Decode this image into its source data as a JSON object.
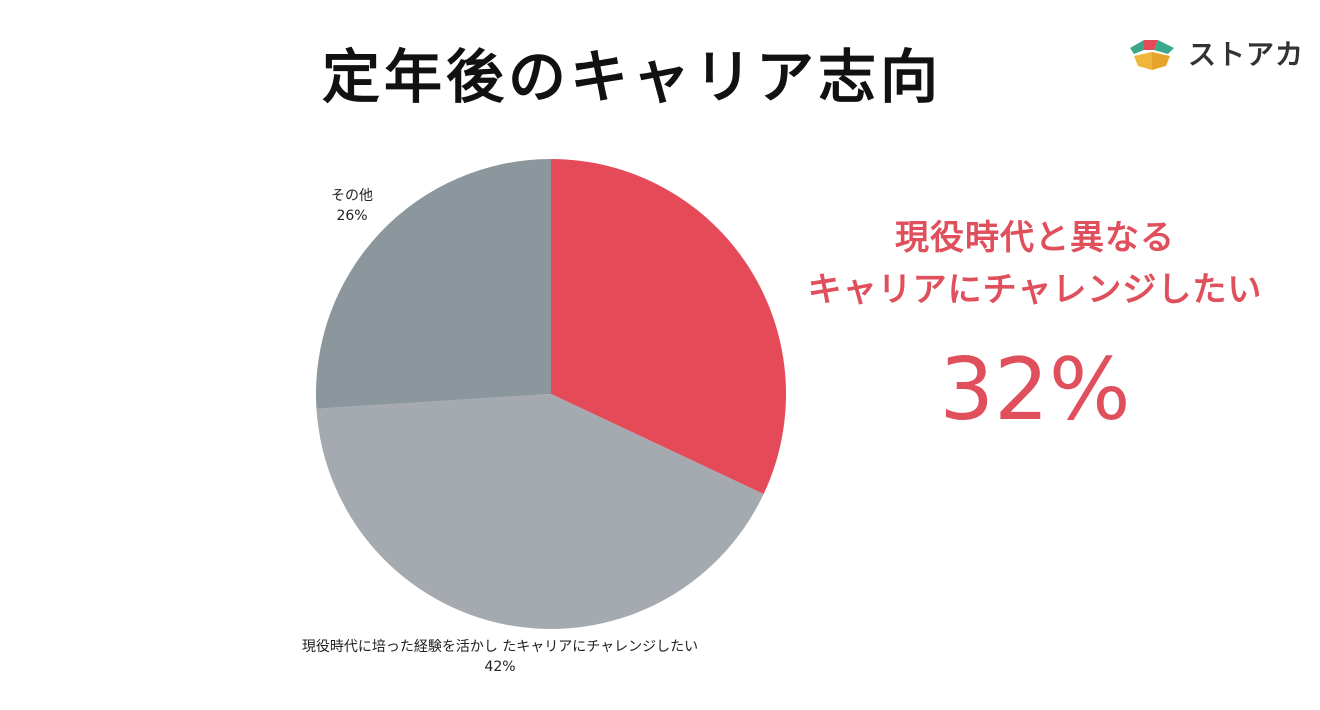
{
  "title": "定年後のキャリア志向",
  "logo": {
    "text": "ストアカ",
    "icon": "storeaca-logo-icon"
  },
  "highlight": {
    "line1": "現役時代と異なる",
    "line2": "キャリアにチャレンジしたい",
    "value": "32%",
    "color": "#e0505c"
  },
  "chart_data": {
    "type": "pie",
    "start": "12 o'clock",
    "direction": "clockwise",
    "slices": [
      {
        "label": "現役時代と異なるキャリアにチャレンジしたい",
        "value": 32,
        "display": "",
        "color": "#e44a58"
      },
      {
        "label": "現役時代に培った経験を活かし たキャリアにチャレンジしたい",
        "value": 42,
        "display": "42%",
        "color": "#a5aab1"
      },
      {
        "label": "その他",
        "value": 26,
        "display": "26%",
        "color": "#8b979d"
      }
    ]
  }
}
